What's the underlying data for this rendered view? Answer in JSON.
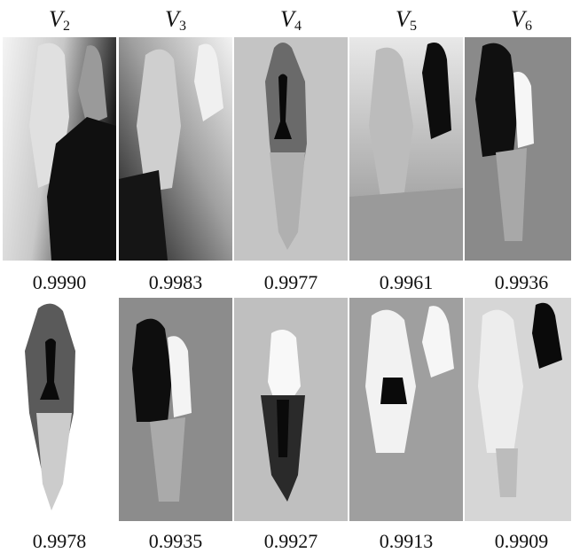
{
  "columns": [
    {
      "letter": "V",
      "index": "2"
    },
    {
      "letter": "V",
      "index": "3"
    },
    {
      "letter": "V",
      "index": "4"
    },
    {
      "letter": "V",
      "index": "5"
    },
    {
      "letter": "V",
      "index": "6"
    }
  ],
  "rows": [
    {
      "scores": [
        "0.9990",
        "0.9983",
        "0.9977",
        "0.9961",
        "0.9936"
      ]
    },
    {
      "scores": [
        "0.9978",
        "0.9935",
        "0.9927",
        "0.9913",
        "0.9909"
      ]
    }
  ]
}
